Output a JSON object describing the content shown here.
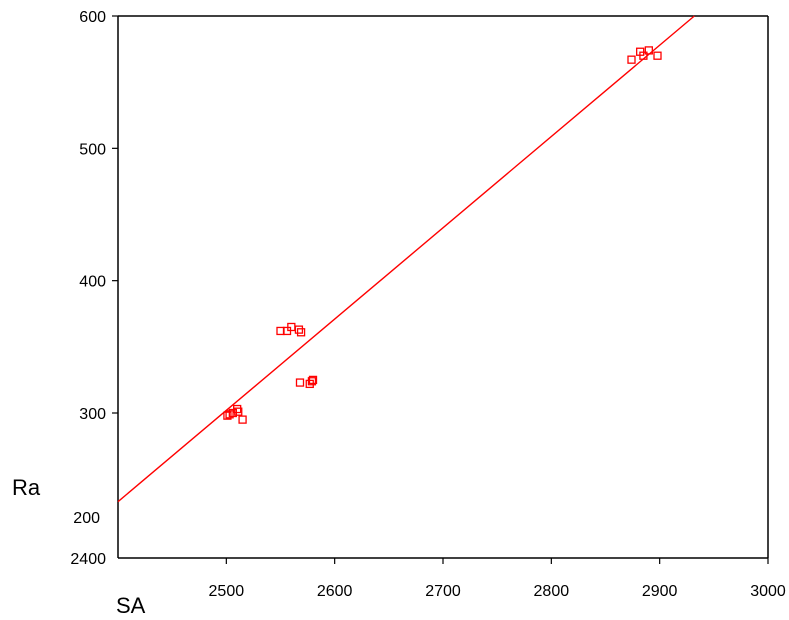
{
  "chart_data": {
    "type": "scatter",
    "title": "",
    "xlabel": "SA",
    "ylabel": "Ra",
    "xlim": [
      2400,
      3000
    ],
    "ylim": [
      200,
      600
    ],
    "x_ticks": [
      "2500",
      "2600",
      "2700",
      "2800",
      "2900",
      "3000"
    ],
    "y_ticks": [
      "300",
      "400",
      "500",
      "600"
    ],
    "y_lower_labels": [
      "200",
      "2400"
    ],
    "grid": false,
    "legend": "none",
    "colors": {
      "points": "#ff0000",
      "fit_line": "#ff0000",
      "axes": "#000000"
    },
    "series": [
      {
        "marker": "open-square",
        "points": [
          {
            "x": 2501,
            "y": 298
          },
          {
            "x": 2503,
            "y": 299
          },
          {
            "x": 2506,
            "y": 300
          },
          {
            "x": 2510,
            "y": 303
          },
          {
            "x": 2511,
            "y": 301
          },
          {
            "x": 2515,
            "y": 295
          },
          {
            "x": 2550,
            "y": 362
          },
          {
            "x": 2556,
            "y": 362
          },
          {
            "x": 2560,
            "y": 365
          },
          {
            "x": 2567,
            "y": 363
          },
          {
            "x": 2569,
            "y": 361
          },
          {
            "x": 2568,
            "y": 323
          },
          {
            "x": 2577,
            "y": 322
          },
          {
            "x": 2579,
            "y": 324
          },
          {
            "x": 2580,
            "y": 325
          },
          {
            "x": 2874,
            "y": 567
          },
          {
            "x": 2882,
            "y": 573
          },
          {
            "x": 2885,
            "y": 570
          },
          {
            "x": 2890,
            "y": 574
          },
          {
            "x": 2898,
            "y": 570
          }
        ]
      }
    ],
    "fit_line": {
      "x": [
        2400,
        2932
      ],
      "y": [
        233,
        600
      ]
    }
  }
}
